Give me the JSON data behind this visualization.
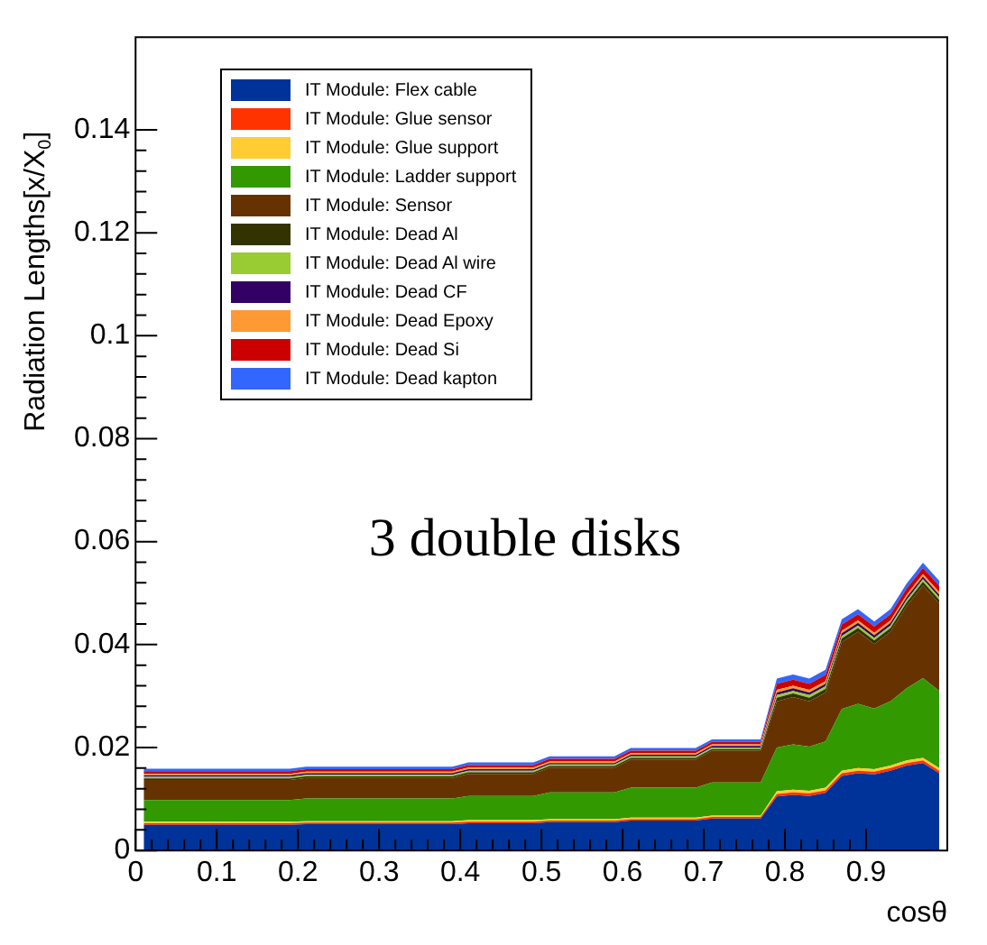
{
  "chart_data": {
    "type": "area",
    "xlabel": "cosθ",
    "ylabel": "Radiation Lengths[x/X$_{0}$]",
    "annotations": [
      "3 double disks"
    ],
    "stacked": true,
    "legend": "top left",
    "x": [
      0.01,
      0.03,
      0.05,
      0.07,
      0.09,
      0.11,
      0.13,
      0.15,
      0.17,
      0.19,
      0.21,
      0.23,
      0.25,
      0.27,
      0.29,
      0.31,
      0.33,
      0.35,
      0.37,
      0.39,
      0.41,
      0.43,
      0.45,
      0.47,
      0.49,
      0.51,
      0.53,
      0.55,
      0.57,
      0.59,
      0.61,
      0.63,
      0.65,
      0.67,
      0.69,
      0.71,
      0.73,
      0.75,
      0.77,
      0.79,
      0.81,
      0.83,
      0.85,
      0.87,
      0.89,
      0.91,
      0.93,
      0.95,
      0.97,
      0.99
    ],
    "xlim": [
      0,
      1
    ],
    "ylim": [
      0,
      0.158
    ],
    "xticks": [
      0,
      0.1,
      0.2,
      0.3,
      0.4,
      0.5,
      0.6,
      0.7,
      0.8,
      0.9
    ],
    "yticks": [
      0,
      0.02,
      0.04,
      0.06,
      0.08,
      0.1,
      0.12,
      0.14
    ],
    "series": [
      {
        "name": "IT Module: Flex cable",
        "color": "#003399",
        "values": [
          0.005,
          0.005,
          0.005,
          0.005,
          0.005,
          0.005,
          0.005,
          0.005,
          0.005,
          0.005,
          0.0051,
          0.0051,
          0.0051,
          0.0051,
          0.0051,
          0.0051,
          0.0051,
          0.0051,
          0.0051,
          0.0051,
          0.0053,
          0.0053,
          0.0053,
          0.0053,
          0.0053,
          0.0055,
          0.0055,
          0.0055,
          0.0055,
          0.0055,
          0.0058,
          0.0058,
          0.0058,
          0.0058,
          0.0058,
          0.0062,
          0.0062,
          0.0062,
          0.0062,
          0.0105,
          0.0108,
          0.0106,
          0.0112,
          0.0145,
          0.015,
          0.0148,
          0.0155,
          0.0165,
          0.017,
          0.015
        ]
      },
      {
        "name": "IT Module: Glue sensor",
        "color": "#ff3300",
        "values": [
          0.0003,
          0.0003,
          0.0003,
          0.0003,
          0.0003,
          0.0003,
          0.0003,
          0.0003,
          0.0003,
          0.0003,
          0.0003,
          0.0003,
          0.0003,
          0.0003,
          0.0003,
          0.0003,
          0.0003,
          0.0003,
          0.0003,
          0.0003,
          0.0003,
          0.0003,
          0.0003,
          0.0003,
          0.0003,
          0.0003,
          0.0003,
          0.0003,
          0.0003,
          0.0003,
          0.0003,
          0.0003,
          0.0003,
          0.0003,
          0.0003,
          0.0003,
          0.0003,
          0.0003,
          0.0003,
          0.0005,
          0.0005,
          0.0005,
          0.0005,
          0.0005,
          0.0005,
          0.0005,
          0.0005,
          0.0005,
          0.0005,
          0.0005
        ]
      },
      {
        "name": "IT Module: Glue support",
        "color": "#ffcc33",
        "values": [
          0.0003,
          0.0003,
          0.0003,
          0.0003,
          0.0003,
          0.0003,
          0.0003,
          0.0003,
          0.0003,
          0.0003,
          0.0003,
          0.0003,
          0.0003,
          0.0003,
          0.0003,
          0.0003,
          0.0003,
          0.0003,
          0.0003,
          0.0003,
          0.0003,
          0.0003,
          0.0003,
          0.0003,
          0.0003,
          0.0003,
          0.0003,
          0.0003,
          0.0003,
          0.0003,
          0.0003,
          0.0003,
          0.0003,
          0.0003,
          0.0003,
          0.0003,
          0.0003,
          0.0003,
          0.0003,
          0.0005,
          0.0005,
          0.0005,
          0.0005,
          0.0005,
          0.0005,
          0.0005,
          0.0005,
          0.0005,
          0.0005,
          0.0005
        ]
      },
      {
        "name": "IT Module: Ladder support",
        "color": "#339900",
        "values": [
          0.0042,
          0.0042,
          0.0042,
          0.0042,
          0.0042,
          0.0042,
          0.0042,
          0.0042,
          0.0042,
          0.0042,
          0.0044,
          0.0044,
          0.0044,
          0.0044,
          0.0044,
          0.0044,
          0.0044,
          0.0044,
          0.0044,
          0.0044,
          0.0047,
          0.0047,
          0.0047,
          0.0047,
          0.0047,
          0.0052,
          0.0052,
          0.0052,
          0.0052,
          0.0052,
          0.0058,
          0.0058,
          0.0058,
          0.0058,
          0.0058,
          0.0064,
          0.0064,
          0.0064,
          0.0064,
          0.0085,
          0.0088,
          0.0086,
          0.009,
          0.012,
          0.0125,
          0.0118,
          0.0125,
          0.014,
          0.0155,
          0.015
        ]
      },
      {
        "name": "IT Module: Sensor",
        "color": "#663300",
        "values": [
          0.0039,
          0.0039,
          0.0039,
          0.0039,
          0.0039,
          0.0039,
          0.0039,
          0.0039,
          0.0039,
          0.0039,
          0.004,
          0.004,
          0.004,
          0.004,
          0.004,
          0.004,
          0.004,
          0.004,
          0.004,
          0.004,
          0.0043,
          0.0043,
          0.0043,
          0.0043,
          0.0043,
          0.0048,
          0.0048,
          0.0048,
          0.0048,
          0.0048,
          0.0055,
          0.0055,
          0.0055,
          0.0055,
          0.0055,
          0.0062,
          0.0062,
          0.0062,
          0.0062,
          0.009,
          0.0092,
          0.0088,
          0.0095,
          0.013,
          0.014,
          0.0125,
          0.0135,
          0.016,
          0.018,
          0.017
        ]
      },
      {
        "name": "IT Module: Dead Al",
        "color": "#333300",
        "values": [
          0.0003,
          0.0003,
          0.0003,
          0.0003,
          0.0003,
          0.0003,
          0.0003,
          0.0003,
          0.0003,
          0.0003,
          0.0003,
          0.0003,
          0.0003,
          0.0003,
          0.0003,
          0.0003,
          0.0003,
          0.0003,
          0.0003,
          0.0003,
          0.0003,
          0.0003,
          0.0003,
          0.0003,
          0.0003,
          0.0003,
          0.0003,
          0.0003,
          0.0003,
          0.0003,
          0.0003,
          0.0003,
          0.0003,
          0.0003,
          0.0003,
          0.0003,
          0.0003,
          0.0003,
          0.0003,
          0.0007,
          0.0007,
          0.0007,
          0.0007,
          0.0007,
          0.0007,
          0.0007,
          0.0007,
          0.0007,
          0.0007,
          0.0007
        ]
      },
      {
        "name": "IT Module: Dead Al wire",
        "color": "#99cc33",
        "values": [
          0.0003,
          0.0003,
          0.0003,
          0.0003,
          0.0003,
          0.0003,
          0.0003,
          0.0003,
          0.0003,
          0.0003,
          0.0003,
          0.0003,
          0.0003,
          0.0003,
          0.0003,
          0.0003,
          0.0003,
          0.0003,
          0.0003,
          0.0003,
          0.0003,
          0.0003,
          0.0003,
          0.0003,
          0.0003,
          0.0003,
          0.0003,
          0.0003,
          0.0003,
          0.0003,
          0.0003,
          0.0003,
          0.0003,
          0.0003,
          0.0003,
          0.0003,
          0.0003,
          0.0003,
          0.0003,
          0.0005,
          0.0005,
          0.0005,
          0.0005,
          0.0005,
          0.0005,
          0.0005,
          0.0005,
          0.0005,
          0.0005,
          0.0005
        ]
      },
      {
        "name": "IT Module: Dead CF",
        "color": "#330066",
        "values": [
          0.0003,
          0.0003,
          0.0003,
          0.0003,
          0.0003,
          0.0003,
          0.0003,
          0.0003,
          0.0003,
          0.0003,
          0.0003,
          0.0003,
          0.0003,
          0.0003,
          0.0003,
          0.0003,
          0.0003,
          0.0003,
          0.0003,
          0.0003,
          0.0003,
          0.0003,
          0.0003,
          0.0003,
          0.0003,
          0.0003,
          0.0003,
          0.0003,
          0.0003,
          0.0003,
          0.0003,
          0.0003,
          0.0003,
          0.0003,
          0.0003,
          0.0003,
          0.0003,
          0.0003,
          0.0003,
          0.0005,
          0.0005,
          0.0005,
          0.0005,
          0.0005,
          0.0005,
          0.0005,
          0.0005,
          0.0005,
          0.0005,
          0.0005
        ]
      },
      {
        "name": "IT Module: Dead Epoxy",
        "color": "#ff9933",
        "values": [
          0.0003,
          0.0003,
          0.0003,
          0.0003,
          0.0003,
          0.0003,
          0.0003,
          0.0003,
          0.0003,
          0.0003,
          0.0003,
          0.0003,
          0.0003,
          0.0003,
          0.0003,
          0.0003,
          0.0003,
          0.0003,
          0.0003,
          0.0003,
          0.0003,
          0.0003,
          0.0003,
          0.0003,
          0.0003,
          0.0003,
          0.0003,
          0.0003,
          0.0003,
          0.0003,
          0.0003,
          0.0003,
          0.0003,
          0.0003,
          0.0003,
          0.0003,
          0.0003,
          0.0003,
          0.0003,
          0.0005,
          0.0005,
          0.0005,
          0.0005,
          0.0005,
          0.0005,
          0.0005,
          0.0005,
          0.0005,
          0.0005,
          0.0005
        ]
      },
      {
        "name": "IT Module: Dead Si",
        "color": "#cc0000",
        "values": [
          0.0005,
          0.0005,
          0.0005,
          0.0005,
          0.0005,
          0.0005,
          0.0005,
          0.0005,
          0.0005,
          0.0005,
          0.0005,
          0.0005,
          0.0005,
          0.0005,
          0.0005,
          0.0005,
          0.0005,
          0.0005,
          0.0005,
          0.0005,
          0.0005,
          0.0005,
          0.0005,
          0.0005,
          0.0005,
          0.0005,
          0.0005,
          0.0005,
          0.0005,
          0.0005,
          0.0005,
          0.0005,
          0.0005,
          0.0005,
          0.0005,
          0.0005,
          0.0005,
          0.0005,
          0.0005,
          0.0012,
          0.0012,
          0.0012,
          0.0012,
          0.0012,
          0.0012,
          0.0012,
          0.0012,
          0.0012,
          0.0012,
          0.0012
        ]
      },
      {
        "name": "IT Module: Dead kapton",
        "color": "#3366ff",
        "values": [
          0.0005,
          0.0005,
          0.0005,
          0.0005,
          0.0005,
          0.0005,
          0.0005,
          0.0005,
          0.0005,
          0.0005,
          0.0005,
          0.0005,
          0.0005,
          0.0005,
          0.0005,
          0.0005,
          0.0005,
          0.0005,
          0.0005,
          0.0005,
          0.0005,
          0.0005,
          0.0005,
          0.0005,
          0.0005,
          0.0005,
          0.0005,
          0.0005,
          0.0005,
          0.0005,
          0.0005,
          0.0005,
          0.0005,
          0.0005,
          0.0005,
          0.0005,
          0.0005,
          0.0005,
          0.0005,
          0.001,
          0.001,
          0.001,
          0.001,
          0.001,
          0.001,
          0.001,
          0.001,
          0.001,
          0.001,
          0.001
        ]
      }
    ]
  }
}
